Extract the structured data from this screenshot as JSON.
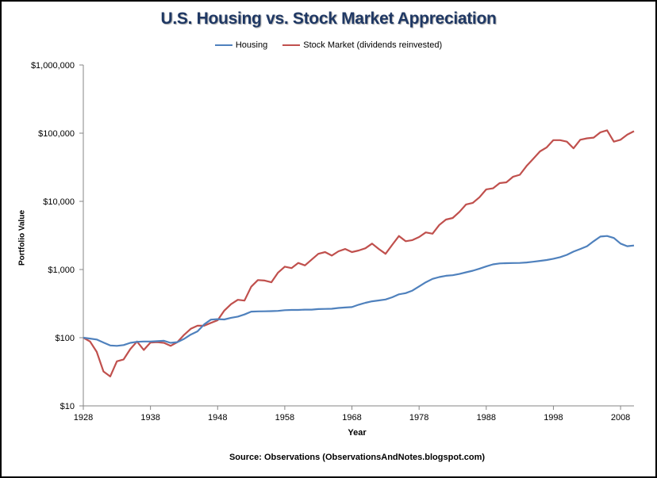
{
  "chart_data": {
    "type": "line",
    "title": "U.S. Housing vs. Stock Market Appreciation",
    "xlabel": "Year",
    "ylabel": "Portfolio Value",
    "yscale": "log",
    "ylim": [
      10,
      1000000
    ],
    "xlim": [
      1928,
      2010
    ],
    "yticks": [
      10,
      100,
      1000,
      10000,
      100000,
      1000000
    ],
    "ytick_labels": [
      "$10",
      "$100",
      "$1,000",
      "$10,000",
      "$100,000",
      "$1,000,000"
    ],
    "xticks": [
      1928,
      1938,
      1948,
      1958,
      1968,
      1978,
      1988,
      1998,
      2008
    ],
    "xtick_labels": [
      "1928",
      "1938",
      "1948",
      "1958",
      "1968",
      "1978",
      "1988",
      "1998",
      "2008"
    ],
    "source": "Source: Observations (ObservationsAndNotes.blogspot.com)",
    "legend_position": "top-center",
    "series": [
      {
        "name": "Housing",
        "color": "#4F81BD",
        "x": [
          1928,
          1929,
          1930,
          1931,
          1932,
          1933,
          1934,
          1935,
          1936,
          1937,
          1938,
          1939,
          1940,
          1941,
          1942,
          1943,
          1944,
          1945,
          1946,
          1947,
          1948,
          1949,
          1950,
          1951,
          1952,
          1953,
          1954,
          1955,
          1956,
          1957,
          1958,
          1959,
          1960,
          1961,
          1962,
          1963,
          1964,
          1965,
          1966,
          1967,
          1968,
          1969,
          1970,
          1971,
          1972,
          1973,
          1974,
          1975,
          1976,
          1977,
          1978,
          1979,
          1980,
          1981,
          1982,
          1983,
          1984,
          1985,
          1986,
          1987,
          1988,
          1989,
          1990,
          1991,
          1992,
          1993,
          1994,
          1995,
          1996,
          1997,
          1998,
          1999,
          2000,
          2001,
          2002,
          2003,
          2004,
          2005,
          2006,
          2007,
          2008,
          2009,
          2010
        ],
        "values": [
          100,
          97,
          94,
          85,
          77,
          76,
          78,
          84,
          87,
          88,
          88,
          89,
          90,
          84,
          86,
          96,
          111,
          124,
          157,
          184,
          187,
          185,
          196,
          204,
          219,
          241,
          243,
          244,
          245,
          247,
          253,
          255,
          255,
          258,
          258,
          263,
          264,
          266,
          273,
          277,
          281,
          305,
          325,
          342,
          352,
          363,
          392,
          433,
          450,
          490,
          566,
          650,
          730,
          775,
          810,
          825,
          860,
          910,
          960,
          1030,
          1110,
          1190,
          1230,
          1240,
          1245,
          1250,
          1270,
          1300,
          1340,
          1380,
          1440,
          1520,
          1640,
          1830,
          2000,
          2200,
          2600,
          3050,
          3100,
          2900,
          2400,
          2200,
          2250
        ]
      },
      {
        "name": "Stock Market (dividends reinvested)",
        "color": "#C0504D",
        "x": [
          1928,
          1929,
          1930,
          1931,
          1932,
          1933,
          1934,
          1935,
          1936,
          1937,
          1938,
          1939,
          1940,
          1941,
          1942,
          1943,
          1944,
          1945,
          1946,
          1947,
          1948,
          1949,
          1950,
          1951,
          1952,
          1953,
          1954,
          1955,
          1956,
          1957,
          1958,
          1959,
          1960,
          1961,
          1962,
          1963,
          1964,
          1965,
          1966,
          1967,
          1968,
          1969,
          1970,
          1971,
          1972,
          1973,
          1974,
          1975,
          1976,
          1977,
          1978,
          1979,
          1980,
          1981,
          1982,
          1983,
          1984,
          1985,
          1986,
          1987,
          1988,
          1989,
          1990,
          1991,
          1992,
          1993,
          1994,
          1995,
          1996,
          1997,
          1998,
          1999,
          2000,
          2001,
          2002,
          2003,
          2004,
          2005,
          2006,
          2007,
          2008,
          2009,
          2010
        ],
        "values": [
          100,
          88,
          62,
          32,
          27,
          45,
          48,
          68,
          88,
          66,
          85,
          86,
          84,
          76,
          86,
          110,
          135,
          150,
          150,
          165,
          180,
          250,
          310,
          360,
          350,
          560,
          700,
          690,
          650,
          900,
          1100,
          1050,
          1250,
          1150,
          1400,
          1700,
          1800,
          1600,
          1850,
          2000,
          1800,
          1900,
          2050,
          2400,
          2000,
          1700,
          2300,
          3100,
          2600,
          2700,
          3000,
          3500,
          3350,
          4500,
          5400,
          5700,
          7000,
          9000,
          9500,
          11500,
          15000,
          15500,
          18500,
          19000,
          23000,
          24500,
          33000,
          42000,
          54000,
          62000,
          79000,
          79000,
          75000,
          60000,
          80000,
          84000,
          86000,
          103000,
          110000,
          75000,
          80000,
          95000,
          107000
        ]
      }
    ]
  }
}
